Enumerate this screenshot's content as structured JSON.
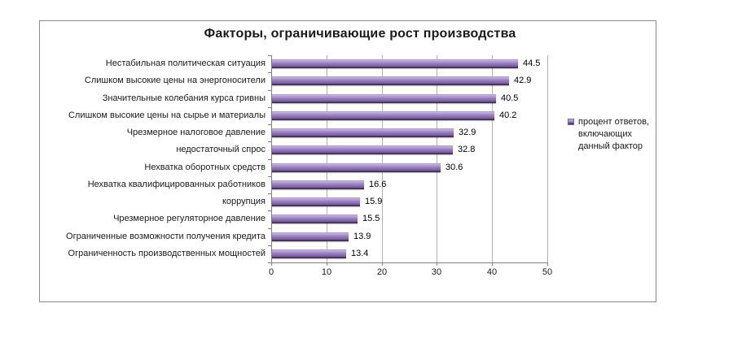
{
  "chart_data": {
    "type": "bar",
    "orientation": "horizontal",
    "title": "Факторы, ограничивающие рост производства",
    "categories": [
      "Нестабильная политическая ситуация",
      "Слишком высокие цены на энергоносители",
      "Значительные колебания курса гривны",
      "Слишком высокие цены на сырье и материалы",
      "Чрезмерное налоговое давление",
      "недостаточный спрос",
      "Нехватка оборотных средств",
      "Нехватка квалифицированных работников",
      "коррупция",
      "Чрезмерное регуляторное давление",
      "Ограниченные возможности получения кредита",
      "Ограниченность производственных мощностей"
    ],
    "values": [
      44.5,
      42.9,
      40.5,
      40.2,
      32.9,
      32.8,
      30.6,
      16.6,
      15.9,
      15.5,
      13.9,
      13.4
    ],
    "series_name": "процент ответов, включающих данный фактор",
    "xlabel": "",
    "ylabel": "",
    "xlim": [
      0,
      50
    ],
    "x_ticks": [
      0,
      10,
      20,
      30,
      40,
      50
    ],
    "grid": "vertical-only",
    "legend_position": "right",
    "bar_color": "#8064A2",
    "gridline_color": "#b3b3b3",
    "axis_color": "#808080",
    "frame_color": "#8c8c8c"
  },
  "legend": {
    "lines": [
      "процент ответов,",
      "включающих",
      "данный фактор"
    ]
  }
}
